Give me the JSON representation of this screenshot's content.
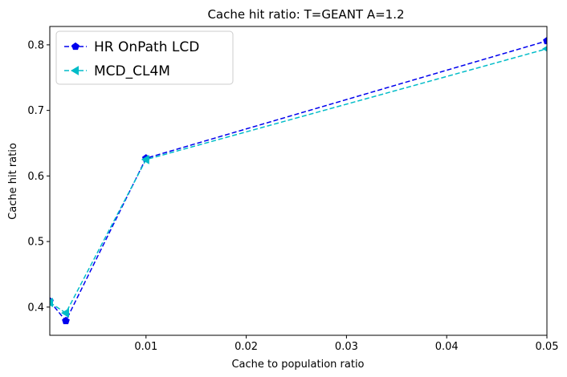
{
  "chart_data": {
    "type": "line",
    "title": "Cache hit ratio: T=GEANT A=1.2",
    "xlabel": "Cache to population ratio",
    "ylabel": "Cache hit ratio",
    "xlim": [
      0.0004,
      0.05
    ],
    "ylim": [
      0.357,
      0.828
    ],
    "xticks": [
      0.01,
      0.02,
      0.03,
      0.04,
      0.05
    ],
    "xtick_labels": [
      "0.01",
      "0.02",
      "0.03",
      "0.04",
      "0.05"
    ],
    "yticks": [
      0.4,
      0.5,
      0.6,
      0.7,
      0.8
    ],
    "ytick_labels": [
      "0.4",
      "0.5",
      "0.6",
      "0.7",
      "0.8"
    ],
    "grid": false,
    "legend_position": "top-left",
    "x": [
      0.0004,
      0.002,
      0.01,
      0.05
    ],
    "series": [
      {
        "name": "HR OnPath LCD",
        "color": "#0000ee",
        "marker": "pentagon",
        "linestyle": "dashed",
        "values": [
          0.409,
          0.379,
          0.627,
          0.806
        ]
      },
      {
        "name": "MCD_CL4M",
        "color": "#00bcc8",
        "marker": "triangle-left",
        "linestyle": "dashed",
        "values": [
          0.407,
          0.391,
          0.625,
          0.794
        ]
      }
    ]
  }
}
